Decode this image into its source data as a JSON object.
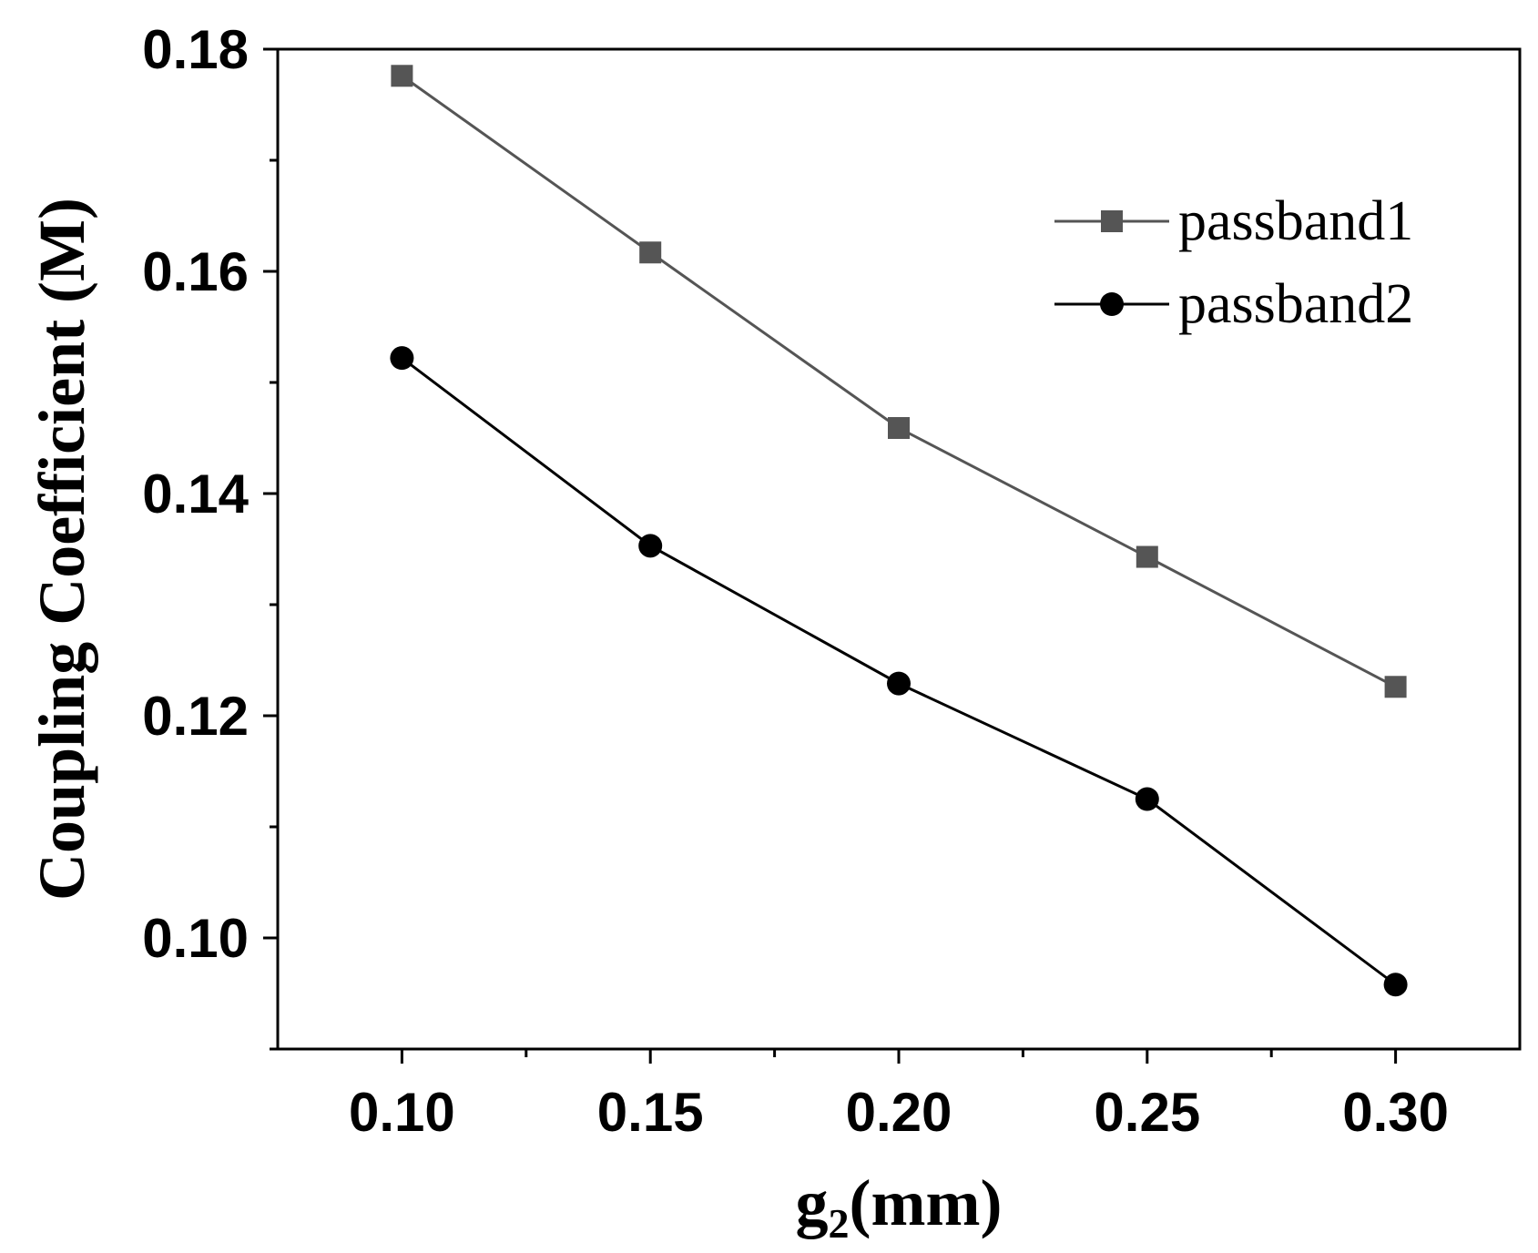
{
  "chart_data": {
    "type": "line",
    "title": "",
    "xlabel_main": "g",
    "xlabel_sub": "2",
    "xlabel_unit": "(mm)",
    "ylabel": "Coupling Coefficient (M)",
    "x": [
      0.1,
      0.15,
      0.2,
      0.25,
      0.3
    ],
    "xlim": [
      0.075,
      0.325
    ],
    "ylim": [
      0.09,
      0.18
    ],
    "x_ticks": [
      "0.10",
      "0.15",
      "0.20",
      "0.25",
      "0.30"
    ],
    "y_ticks": [
      "0.10",
      "0.12",
      "0.14",
      "0.16",
      "0.18"
    ],
    "legend_position": "top-right",
    "grid": false,
    "series": [
      {
        "name": "passband1",
        "marker": "square",
        "color": "#555555",
        "values": [
          0.1776,
          0.1617,
          0.1459,
          0.1343,
          0.1226
        ]
      },
      {
        "name": "passband2",
        "marker": "circle",
        "color": "#000000",
        "values": [
          0.1522,
          0.1353,
          0.1229,
          0.1125,
          0.0958
        ]
      }
    ]
  }
}
